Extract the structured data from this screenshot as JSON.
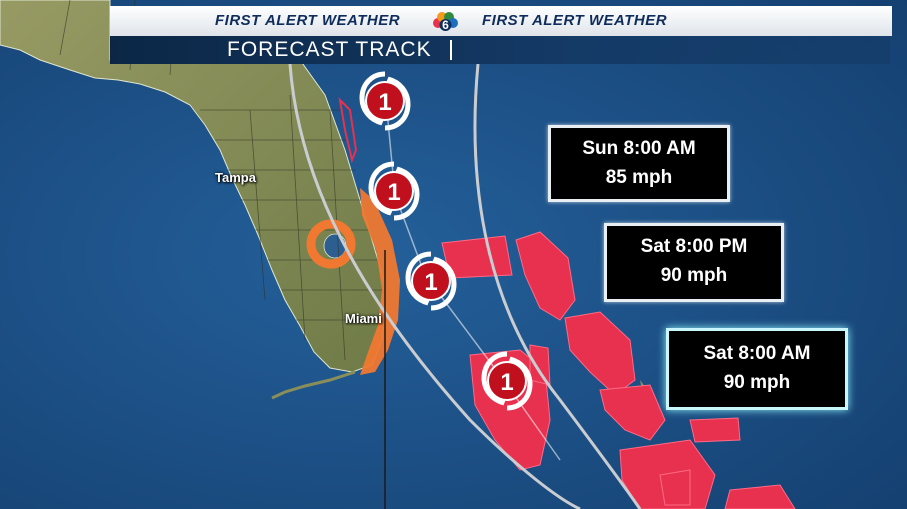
{
  "header": {
    "brand_left": "FIRST ALERT WEATHER",
    "brand_right": "FIRST ALERT WEATHER",
    "logo_digit": "6",
    "title": "FORECAST TRACK"
  },
  "cities": [
    {
      "name": "Tampa"
    },
    {
      "name": "Miami"
    }
  ],
  "forecast_points": [
    {
      "time": "Sun 8:00 AM",
      "wind": "85 mph",
      "category": "1"
    },
    {
      "time": "Sat 8:00 PM",
      "wind": "90 mph",
      "category": "1"
    },
    {
      "time": "Sat 8:00 AM",
      "wind": "90 mph",
      "category": "1"
    },
    {
      "time": "",
      "wind": "",
      "category": "1"
    }
  ],
  "colors": {
    "water": "#1d4f86",
    "land": "#8a8f5a",
    "hurricane_warning": "#e8304f",
    "tropical_storm_watch": "#f07830",
    "track_cone": "#c9ccd1",
    "storm_icon": "#c0101e",
    "label_box": "#000000"
  }
}
